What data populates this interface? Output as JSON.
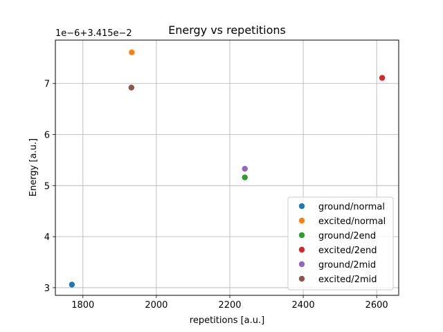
{
  "chart_data": {
    "type": "scatter",
    "title": "Energy vs repetitions",
    "xlabel": "repetitions [a.u.]",
    "ylabel": "Energy [a.u.]",
    "y_offset_label": "1e−6+3.415e−2",
    "xlim": [
      1725,
      2660
    ],
    "ylim": [
      2.85,
      7.85
    ],
    "x_ticks": [
      1800,
      2000,
      2200,
      2400,
      2600
    ],
    "y_ticks": [
      3,
      4,
      5,
      6,
      7
    ],
    "grid": true,
    "legend_position": "lower right",
    "series": [
      {
        "name": "ground/normal",
        "color": "#1f77b4",
        "x": [
          1770
        ],
        "y": [
          3.06
        ]
      },
      {
        "name": "excited/normal",
        "color": "#ff7f0e",
        "x": [
          1933
        ],
        "y": [
          7.61
        ]
      },
      {
        "name": "ground/2end",
        "color": "#2ca02c",
        "x": [
          2241
        ],
        "y": [
          5.16
        ]
      },
      {
        "name": "excited/2end",
        "color": "#d62728",
        "x": [
          2615
        ],
        "y": [
          7.11
        ]
      },
      {
        "name": "ground/2mid",
        "color": "#9467bd",
        "x": [
          2241
        ],
        "y": [
          5.33
        ]
      },
      {
        "name": "excited/2mid",
        "color": "#8c564b",
        "x": [
          1932
        ],
        "y": [
          6.92
        ]
      }
    ]
  }
}
